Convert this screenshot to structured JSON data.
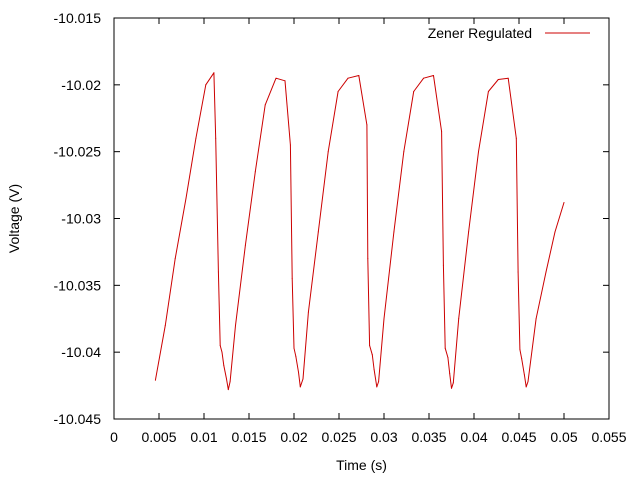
{
  "chart_data": {
    "type": "line",
    "title": "",
    "xlabel": "Time (s)",
    "ylabel": "Voltage (V)",
    "xlim": [
      0,
      0.055
    ],
    "ylim": [
      -10.045,
      -10.015
    ],
    "xticks": [
      0,
      0.005,
      0.01,
      0.015,
      0.02,
      0.025,
      0.03,
      0.035,
      0.04,
      0.045,
      0.05,
      0.055
    ],
    "xtick_labels": [
      "0",
      "0.005",
      "0.01",
      "0.015",
      "0.02",
      "0.025",
      "0.03",
      "0.035",
      "0.04",
      "0.045",
      "0.05",
      "0.055"
    ],
    "yticks": [
      -10.015,
      -10.02,
      -10.025,
      -10.03,
      -10.035,
      -10.04,
      -10.045
    ],
    "ytick_labels": [
      "-10.015",
      "-10.02",
      "-10.025",
      "-10.03",
      "-10.035",
      "-10.04",
      "-10.045"
    ],
    "grid": false,
    "legend_position": "top-right",
    "series": [
      {
        "name": "Zener Regulated",
        "color": "#cc0000",
        "x": [
          0.0046,
          0.0057,
          0.0068,
          0.008,
          0.0091,
          0.0102,
          0.0111,
          0.0113,
          0.0116,
          0.0118,
          0.012,
          0.0122,
          0.0125,
          0.0127,
          0.0129,
          0.0135,
          0.0146,
          0.0157,
          0.0168,
          0.018,
          0.019,
          0.0196,
          0.0198,
          0.02,
          0.0202,
          0.0205,
          0.0207,
          0.021,
          0.0216,
          0.0227,
          0.0238,
          0.0249,
          0.026,
          0.0272,
          0.0281,
          0.0282,
          0.0284,
          0.0287,
          0.0289,
          0.0292,
          0.0294,
          0.03,
          0.0311,
          0.0322,
          0.0333,
          0.0344,
          0.0355,
          0.0364,
          0.0366,
          0.0368,
          0.0371,
          0.0373,
          0.0375,
          0.0377,
          0.0383,
          0.0394,
          0.0405,
          0.0416,
          0.0427,
          0.0438,
          0.0447,
          0.0449,
          0.0451,
          0.0453,
          0.0456,
          0.0458,
          0.046,
          0.0469,
          0.048,
          0.049,
          0.05
        ],
        "y": [
          -10.0421,
          -10.038,
          -10.033,
          -10.0285,
          -10.024,
          -10.02,
          -10.0191,
          -10.024,
          -10.034,
          -10.0395,
          -10.04,
          -10.041,
          -10.042,
          -10.0428,
          -10.0422,
          -10.038,
          -10.032,
          -10.0265,
          -10.0215,
          -10.0195,
          -10.0197,
          -10.0245,
          -10.0345,
          -10.0397,
          -10.0403,
          -10.0415,
          -10.0426,
          -10.042,
          -10.037,
          -10.031,
          -10.025,
          -10.0205,
          -10.0195,
          -10.0193,
          -10.023,
          -10.033,
          -10.0395,
          -10.0402,
          -10.0413,
          -10.0426,
          -10.0422,
          -10.0375,
          -10.031,
          -10.025,
          -10.0205,
          -10.0195,
          -10.0193,
          -10.0235,
          -10.0335,
          -10.0397,
          -10.0404,
          -10.0416,
          -10.0427,
          -10.0423,
          -10.0375,
          -10.031,
          -10.025,
          -10.0205,
          -10.0196,
          -10.0195,
          -10.024,
          -10.034,
          -10.0398,
          -10.0405,
          -10.0417,
          -10.0426,
          -10.0422,
          -10.0375,
          -10.034,
          -10.031,
          -10.0288
        ]
      }
    ]
  }
}
